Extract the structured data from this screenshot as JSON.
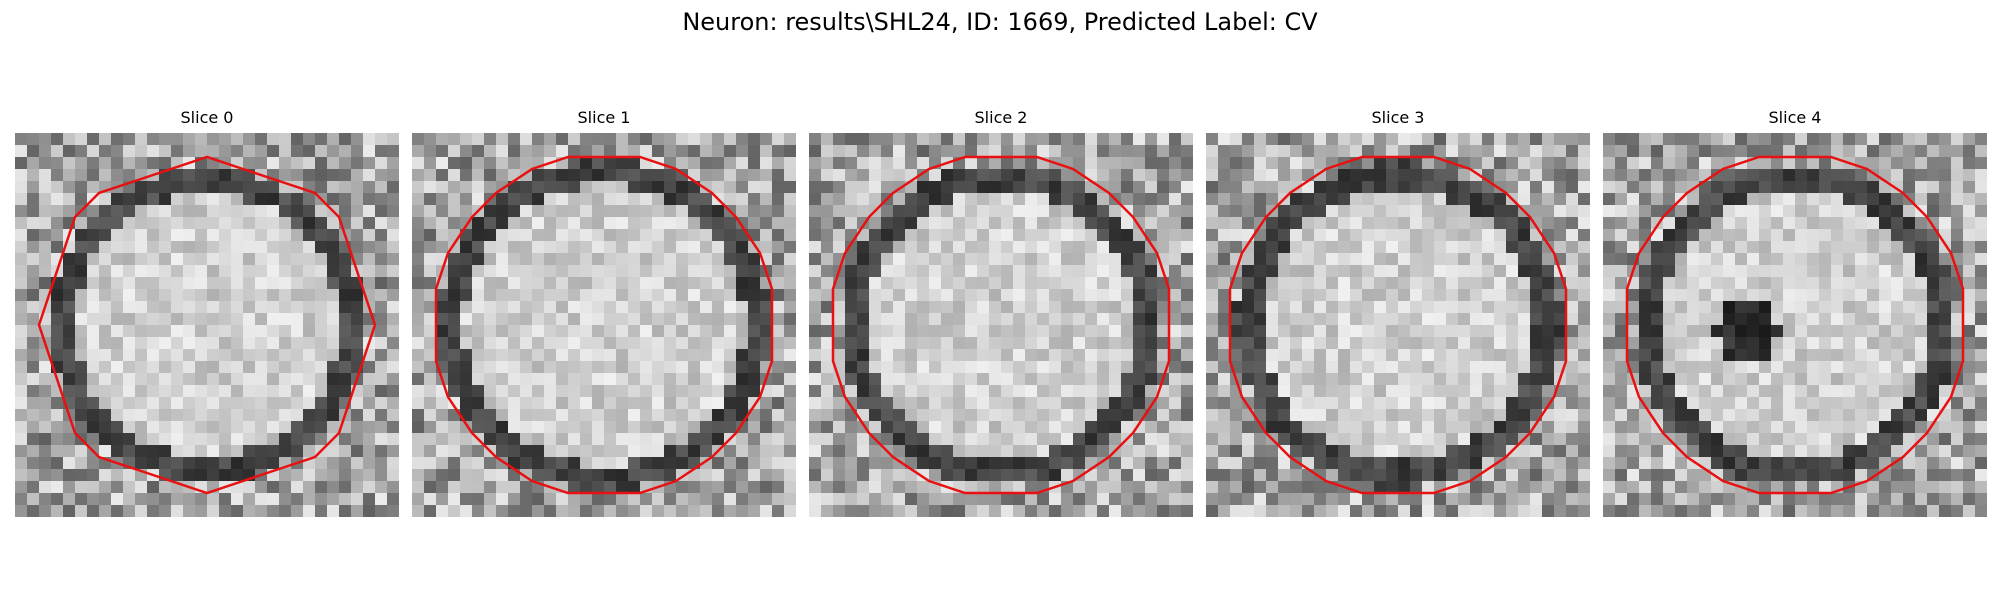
{
  "figure": {
    "title": "Neuron: results\\SHL24, ID: 1669, Predicted Label: CV"
  },
  "slices": [
    {
      "title": "Slice 0",
      "seed": 11,
      "dark_spot": false
    },
    {
      "title": "Slice 1",
      "seed": 23,
      "dark_spot": false
    },
    {
      "title": "Slice 2",
      "seed": 37,
      "dark_spot": false
    },
    {
      "title": "Slice 3",
      "seed": 41,
      "dark_spot": false
    },
    {
      "title": "Slice 4",
      "seed": 53,
      "dark_spot": true
    }
  ],
  "style": {
    "contour_color": "#e81010",
    "colormap": "gray"
  }
}
